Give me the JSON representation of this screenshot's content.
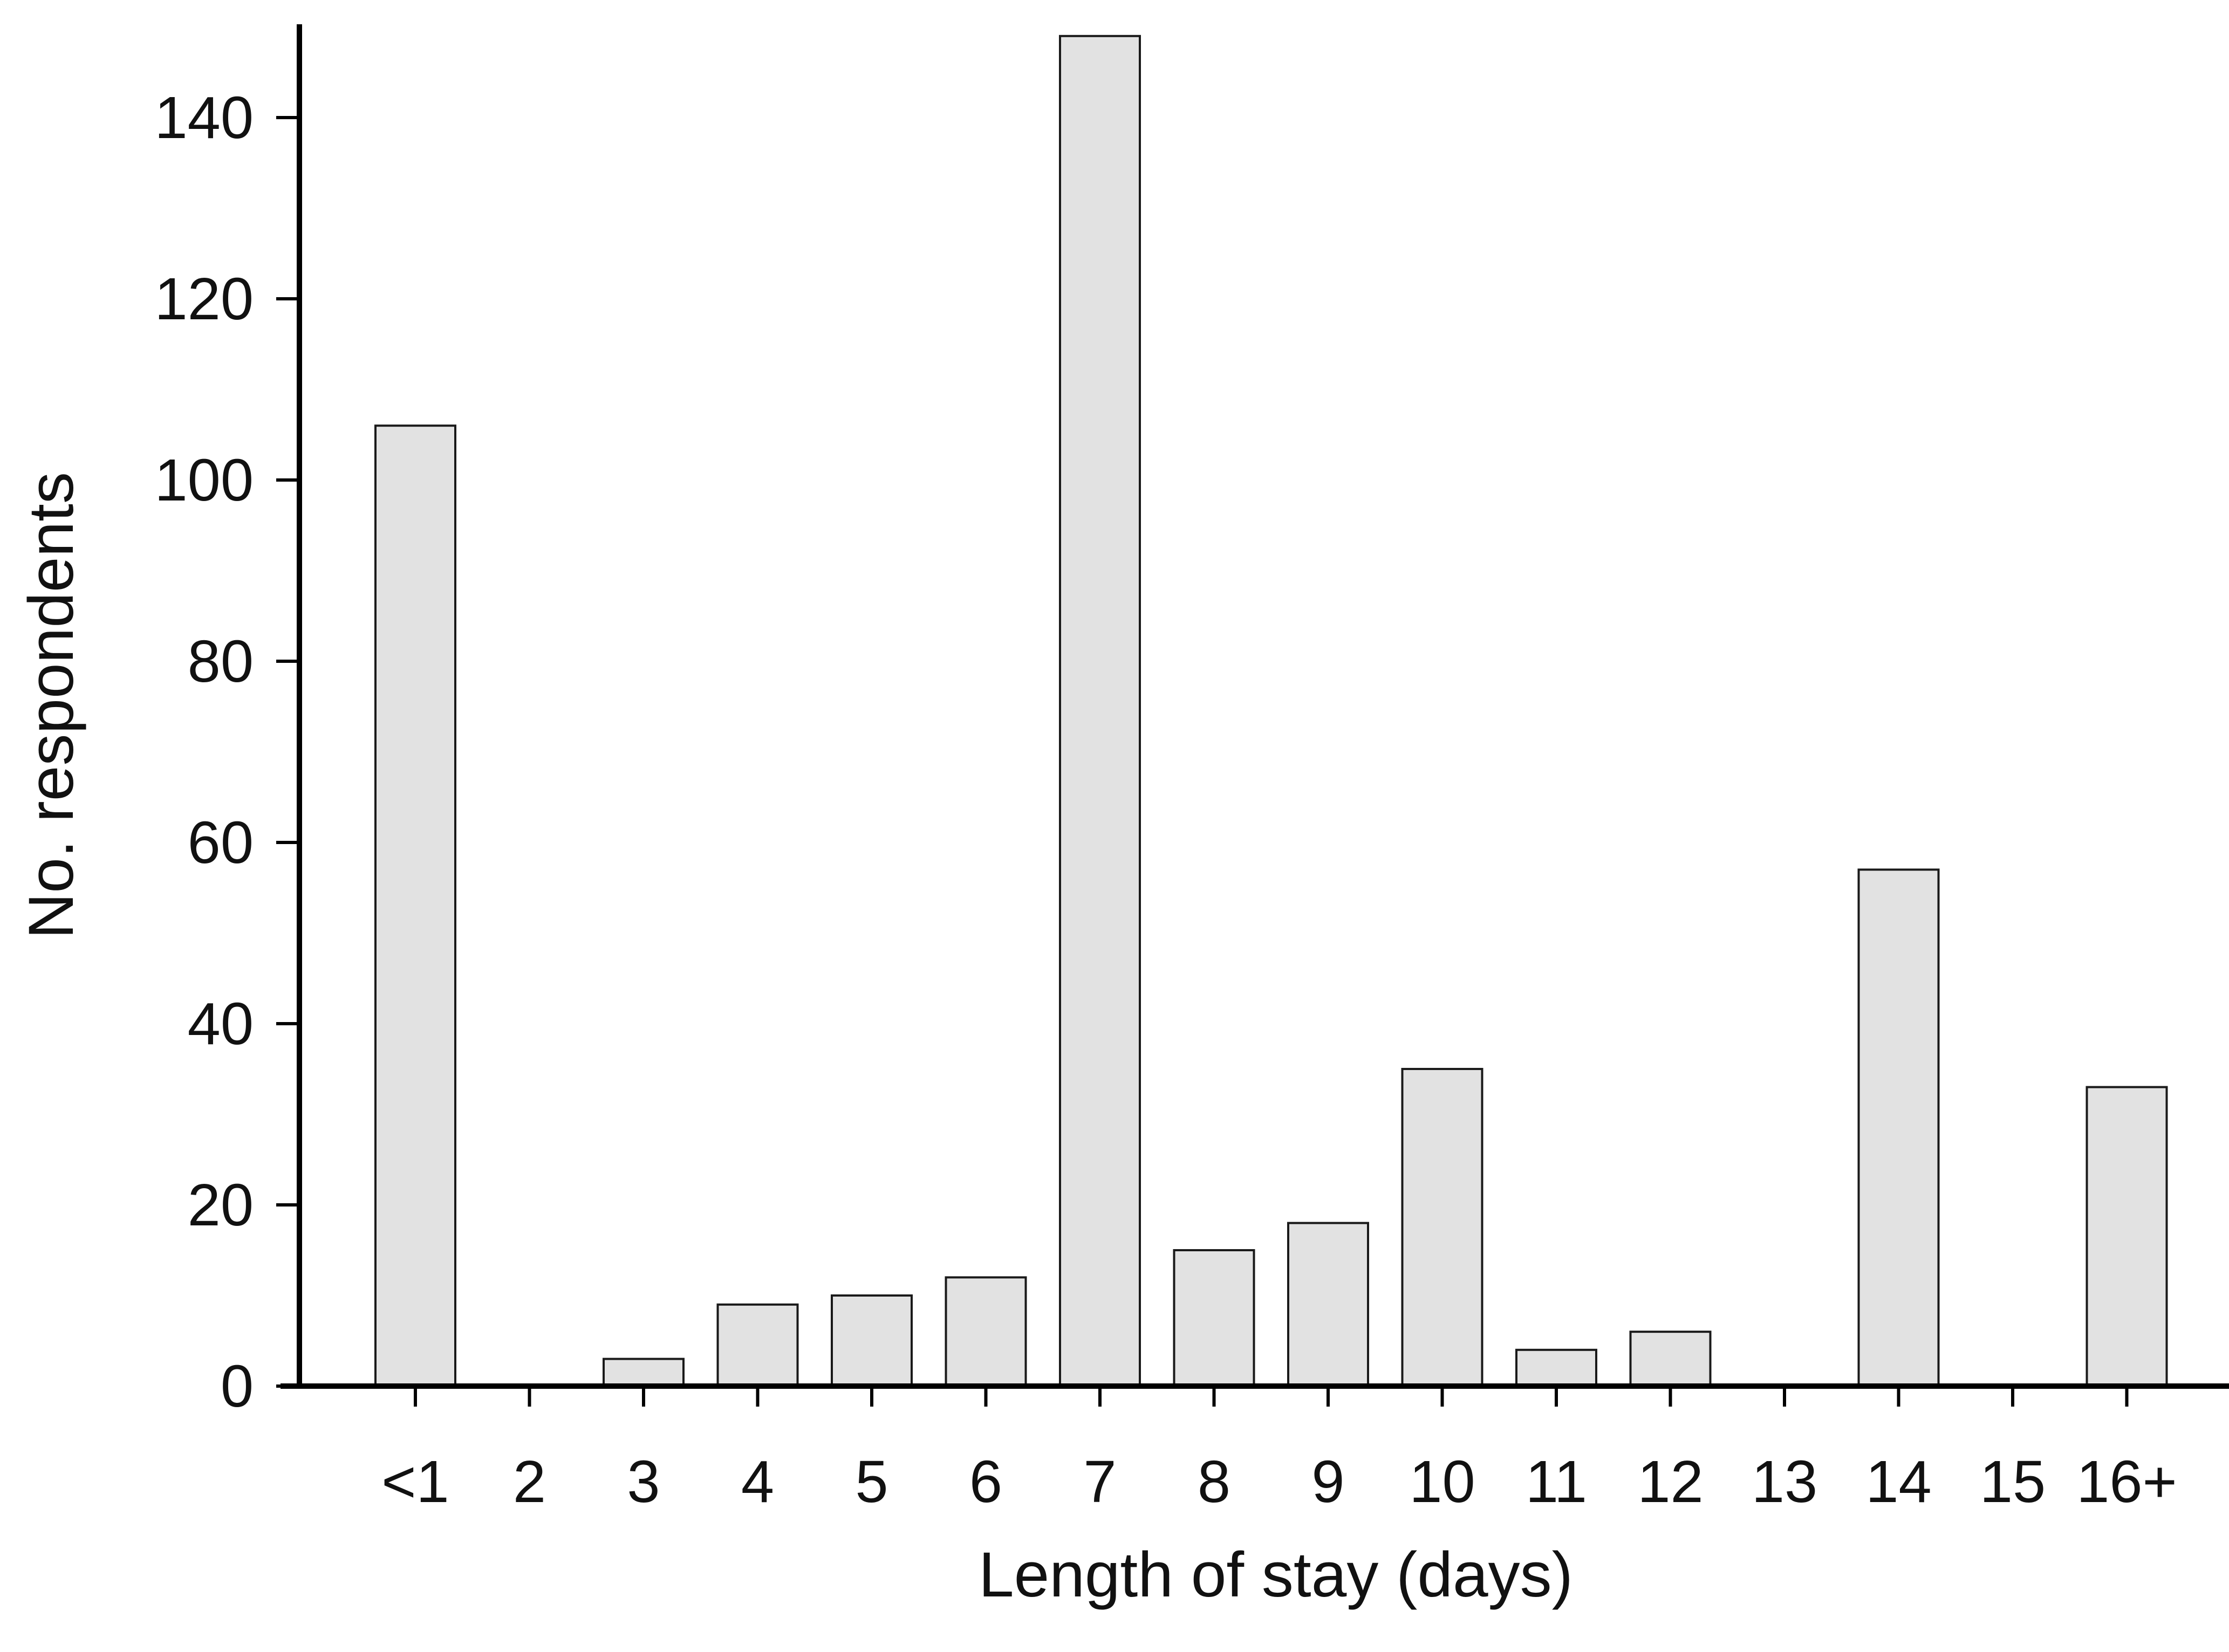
{
  "chart_data": {
    "type": "bar",
    "title": "",
    "xlabel": "Length of stay (days)",
    "ylabel": "No. respondents",
    "categories": [
      "<1",
      "2",
      "3",
      "4",
      "5",
      "6",
      "7",
      "8",
      "9",
      "10",
      "11",
      "12",
      "13",
      "14",
      "15",
      "16+"
    ],
    "values": [
      106,
      0,
      3,
      9,
      10,
      12,
      149,
      15,
      18,
      35,
      4,
      6,
      0,
      57,
      0,
      33
    ],
    "ylim": [
      0,
      150
    ],
    "yticks": [
      0,
      20,
      40,
      60,
      80,
      100,
      120,
      140
    ],
    "grid": false,
    "legend": "none",
    "colors": {
      "bar_fill": "#e2e2e2",
      "bar_stroke": "#1a1a1a",
      "axis": "#000000"
    }
  }
}
